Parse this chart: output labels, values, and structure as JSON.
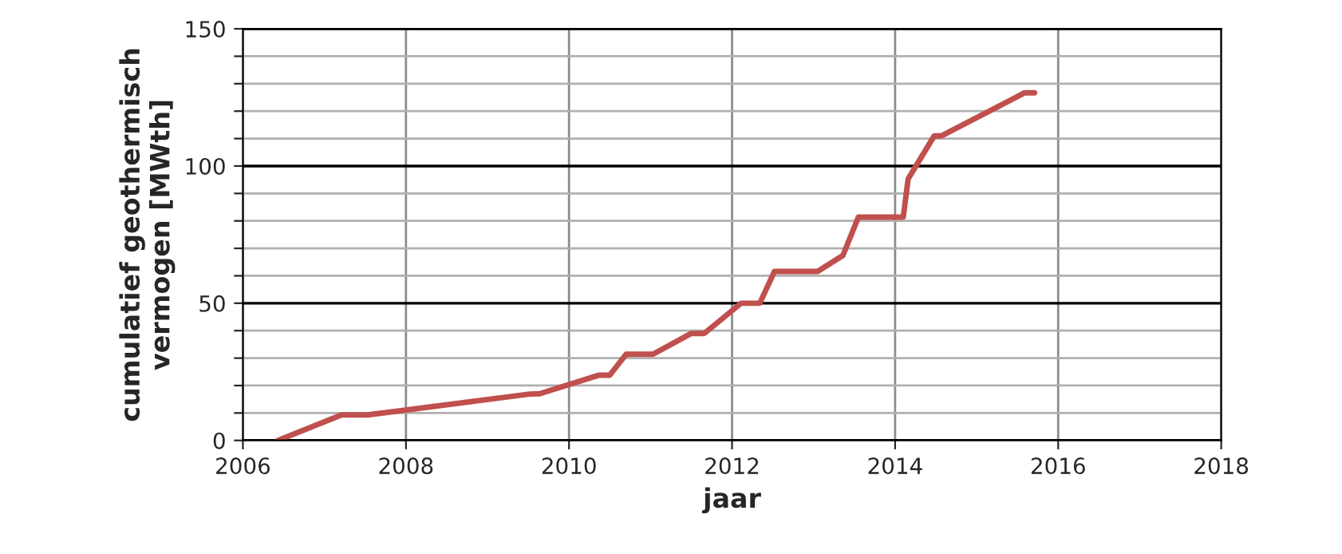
{
  "chart_data": {
    "type": "line",
    "xlabel": "jaar",
    "ylabel": "cumulatief geothermisch\nvermogen [MWth]",
    "x": [
      2006.43,
      2007.21,
      2007.53,
      2009.52,
      2009.64,
      2010.37,
      2010.5,
      2010.7,
      2011.03,
      2011.5,
      2011.66,
      2012.11,
      2012.34,
      2012.52,
      2013.05,
      2013.36,
      2013.55,
      2014.1,
      2014.16,
      2014.48,
      2014.57,
      2015.59,
      2015.71
    ],
    "series": [
      {
        "color": "#c0504d",
        "values": [
          0,
          9.3,
          9.3,
          16.9,
          17,
          23.8,
          23.8,
          31.4,
          31.4,
          39,
          39,
          50,
          50,
          61.6,
          61.6,
          67.4,
          81.4,
          81.4,
          95.3,
          111,
          111,
          126.7,
          126.7
        ]
      }
    ],
    "xlim": [
      2006,
      2018
    ],
    "xticks": [
      2006,
      2008,
      2010,
      2012,
      2014,
      2016,
      2018
    ],
    "ylim": [
      0,
      150
    ],
    "yticks": [
      0,
      {
        "value": 10,
        "label": null
      },
      {
        "value": 20,
        "label": null
      },
      {
        "value": 30,
        "label": null
      },
      {
        "value": 40,
        "label": null
      },
      50,
      {
        "value": 60,
        "label": null
      },
      {
        "value": 70,
        "label": null
      },
      {
        "value": 80,
        "label": null
      },
      {
        "value": 90,
        "label": null
      },
      100,
      {
        "value": 110,
        "label": null
      },
      {
        "value": 120,
        "label": null
      },
      {
        "value": 130,
        "label": null
      },
      {
        "value": 140,
        "label": null
      },
      150
    ],
    "grid": true,
    "legend": false,
    "marker": "none",
    "line_style": "solid"
  }
}
